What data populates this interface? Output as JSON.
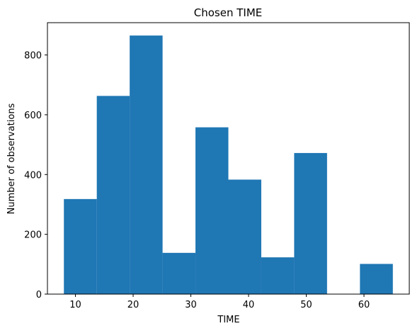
{
  "chart_data": {
    "type": "bar",
    "title": "Chosen TIME",
    "xlabel": "TIME",
    "ylabel": "Number of observations",
    "bins": [
      {
        "start": 8.0,
        "end": 13.7,
        "count": 318
      },
      {
        "start": 13.7,
        "end": 19.4,
        "count": 663
      },
      {
        "start": 19.4,
        "end": 25.1,
        "count": 865
      },
      {
        "start": 25.1,
        "end": 30.8,
        "count": 138
      },
      {
        "start": 30.8,
        "end": 36.5,
        "count": 558
      },
      {
        "start": 36.5,
        "end": 42.2,
        "count": 383
      },
      {
        "start": 42.2,
        "end": 47.9,
        "count": 123
      },
      {
        "start": 47.9,
        "end": 53.6,
        "count": 472
      },
      {
        "start": 53.6,
        "end": 59.3,
        "count": 0
      },
      {
        "start": 59.3,
        "end": 65.0,
        "count": 101
      }
    ],
    "xlim": [
      5.15,
      67.85
    ],
    "ylim": [
      0,
      908
    ],
    "xticks": [
      10,
      20,
      30,
      40,
      50,
      60
    ],
    "yticks": [
      0,
      200,
      400,
      600,
      800
    ],
    "bar_color": "#1f77b4",
    "grid": false,
    "legend": false
  }
}
